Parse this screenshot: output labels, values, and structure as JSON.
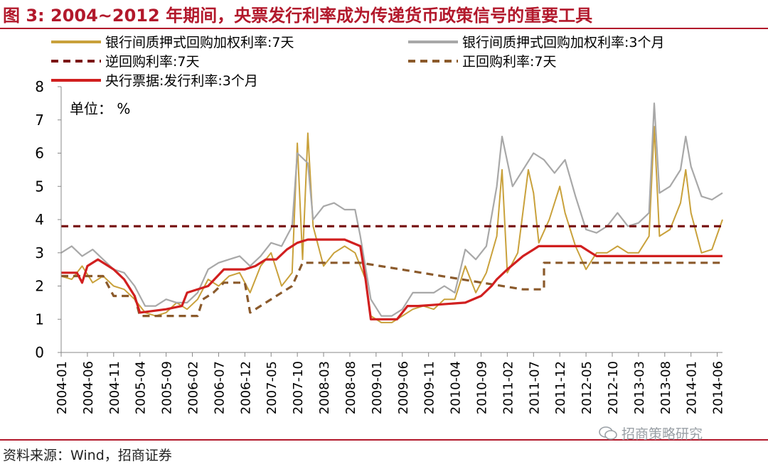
{
  "figure": {
    "title": "图 3:  2004~2012 年期间，央票发行利率成为传递货币政策信号的重要工具",
    "source": "资料来源：Wind，招商证券",
    "watermark": "招商策略研究",
    "watermark_icon": "wechat-icon"
  },
  "colors": {
    "title": "#b2182b",
    "repo7d": "#c9a13b",
    "repo3m": "#a8a8a8",
    "reverse_repo": "#7b1414",
    "forward_repo": "#8b5a2b",
    "cb_bill": "#d11f1f"
  },
  "chart_data": {
    "type": "line",
    "unit_label": "单位： %",
    "ylim": [
      0,
      8
    ],
    "y_ticks": [
      "0",
      "1",
      "2",
      "3",
      "4",
      "5",
      "6",
      "7",
      "8"
    ],
    "x_ticks": [
      "2004-01",
      "2004-06",
      "2004-11",
      "2005-04",
      "2005-09",
      "2006-02",
      "2006-07",
      "2006-12",
      "2007-05",
      "2007-10",
      "2008-03",
      "2008-08",
      "2009-01",
      "2009-06",
      "2009-11",
      "2010-04",
      "2010-09",
      "2011-02",
      "2011-07",
      "2011-12",
      "2012-05",
      "2012-10",
      "2013-03",
      "2013-08",
      "2014-01",
      "2014-06"
    ],
    "x_range": [
      "2004-01",
      "2014-07"
    ],
    "grid": false,
    "legend_position": "top",
    "series": [
      {
        "key": "repo7d",
        "name": "银行间质押式回购加权利率:7天",
        "style": "solid",
        "points": [
          [
            "2004-01",
            2.3
          ],
          [
            "2004-03",
            2.2
          ],
          [
            "2004-05",
            2.6
          ],
          [
            "2004-07",
            2.1
          ],
          [
            "2004-09",
            2.3
          ],
          [
            "2004-11",
            2.0
          ],
          [
            "2005-01",
            1.9
          ],
          [
            "2005-03",
            1.6
          ],
          [
            "2005-05",
            1.2
          ],
          [
            "2005-07",
            1.1
          ],
          [
            "2005-09",
            1.2
          ],
          [
            "2005-11",
            1.5
          ],
          [
            "2006-01",
            1.3
          ],
          [
            "2006-03",
            1.6
          ],
          [
            "2006-05",
            2.2
          ],
          [
            "2006-07",
            2.0
          ],
          [
            "2006-09",
            2.3
          ],
          [
            "2006-11",
            2.4
          ],
          [
            "2007-01",
            1.8
          ],
          [
            "2007-03",
            2.6
          ],
          [
            "2007-05",
            3.0
          ],
          [
            "2007-07",
            2.0
          ],
          [
            "2007-09",
            2.4
          ],
          [
            "2007-10",
            6.3
          ],
          [
            "2007-11",
            2.8
          ],
          [
            "2007-12",
            6.6
          ],
          [
            "2008-01",
            3.8
          ],
          [
            "2008-03",
            2.6
          ],
          [
            "2008-05",
            3.0
          ],
          [
            "2008-07",
            3.2
          ],
          [
            "2008-09",
            3.0
          ],
          [
            "2008-11",
            2.2
          ],
          [
            "2008-12",
            1.1
          ],
          [
            "2009-02",
            0.9
          ],
          [
            "2009-04",
            0.9
          ],
          [
            "2009-06",
            1.1
          ],
          [
            "2009-08",
            1.3
          ],
          [
            "2009-10",
            1.4
          ],
          [
            "2009-12",
            1.3
          ],
          [
            "2010-02",
            1.6
          ],
          [
            "2010-04",
            1.6
          ],
          [
            "2010-06",
            2.6
          ],
          [
            "2010-08",
            1.8
          ],
          [
            "2010-10",
            2.4
          ],
          [
            "2010-12",
            3.5
          ],
          [
            "2011-01",
            5.5
          ],
          [
            "2011-02",
            2.4
          ],
          [
            "2011-04",
            3.0
          ],
          [
            "2011-06",
            5.5
          ],
          [
            "2011-07",
            4.8
          ],
          [
            "2011-08",
            3.3
          ],
          [
            "2011-10",
            4.0
          ],
          [
            "2011-12",
            5.0
          ],
          [
            "2012-01",
            4.2
          ],
          [
            "2012-03",
            3.2
          ],
          [
            "2012-05",
            2.5
          ],
          [
            "2012-07",
            3.0
          ],
          [
            "2012-09",
            3.0
          ],
          [
            "2012-11",
            3.2
          ],
          [
            "2013-01",
            3.0
          ],
          [
            "2013-03",
            3.0
          ],
          [
            "2013-05",
            3.5
          ],
          [
            "2013-06",
            6.8
          ],
          [
            "2013-07",
            3.5
          ],
          [
            "2013-09",
            3.7
          ],
          [
            "2013-11",
            4.5
          ],
          [
            "2013-12",
            5.5
          ],
          [
            "2014-01",
            4.2
          ],
          [
            "2014-03",
            3.0
          ],
          [
            "2014-05",
            3.1
          ],
          [
            "2014-07",
            4.0
          ]
        ]
      },
      {
        "key": "repo3m",
        "name": "银行间质押式回购加权利率:3个月",
        "style": "solid",
        "points": [
          [
            "2004-01",
            3.0
          ],
          [
            "2004-03",
            3.2
          ],
          [
            "2004-05",
            2.9
          ],
          [
            "2004-07",
            3.1
          ],
          [
            "2004-09",
            2.8
          ],
          [
            "2004-11",
            2.5
          ],
          [
            "2005-01",
            2.4
          ],
          [
            "2005-03",
            2.0
          ],
          [
            "2005-05",
            1.4
          ],
          [
            "2005-07",
            1.4
          ],
          [
            "2005-09",
            1.6
          ],
          [
            "2005-11",
            1.5
          ],
          [
            "2006-01",
            1.5
          ],
          [
            "2006-03",
            1.8
          ],
          [
            "2006-05",
            2.5
          ],
          [
            "2006-07",
            2.7
          ],
          [
            "2006-09",
            2.8
          ],
          [
            "2006-11",
            2.9
          ],
          [
            "2007-01",
            2.6
          ],
          [
            "2007-03",
            2.9
          ],
          [
            "2007-05",
            3.3
          ],
          [
            "2007-07",
            3.2
          ],
          [
            "2007-09",
            3.8
          ],
          [
            "2007-10",
            6.0
          ],
          [
            "2007-12",
            5.7
          ],
          [
            "2008-01",
            4.0
          ],
          [
            "2008-03",
            4.4
          ],
          [
            "2008-05",
            4.5
          ],
          [
            "2008-07",
            4.3
          ],
          [
            "2008-09",
            4.3
          ],
          [
            "2008-10",
            3.5
          ],
          [
            "2008-12",
            1.6
          ],
          [
            "2009-02",
            1.1
          ],
          [
            "2009-04",
            1.1
          ],
          [
            "2009-06",
            1.3
          ],
          [
            "2009-08",
            1.8
          ],
          [
            "2009-10",
            1.8
          ],
          [
            "2009-12",
            1.8
          ],
          [
            "2010-02",
            2.0
          ],
          [
            "2010-04",
            1.8
          ],
          [
            "2010-06",
            3.1
          ],
          [
            "2010-08",
            2.8
          ],
          [
            "2010-10",
            3.2
          ],
          [
            "2010-12",
            5.0
          ],
          [
            "2011-01",
            6.5
          ],
          [
            "2011-03",
            5.0
          ],
          [
            "2011-05",
            5.5
          ],
          [
            "2011-07",
            6.0
          ],
          [
            "2011-09",
            5.8
          ],
          [
            "2011-11",
            5.4
          ],
          [
            "2012-01",
            5.8
          ],
          [
            "2012-03",
            4.7
          ],
          [
            "2012-05",
            3.7
          ],
          [
            "2012-07",
            3.6
          ],
          [
            "2012-09",
            3.8
          ],
          [
            "2012-11",
            4.2
          ],
          [
            "2013-01",
            3.8
          ],
          [
            "2013-03",
            3.9
          ],
          [
            "2013-05",
            4.2
          ],
          [
            "2013-06",
            7.5
          ],
          [
            "2013-07",
            4.8
          ],
          [
            "2013-09",
            5.0
          ],
          [
            "2013-11",
            5.5
          ],
          [
            "2013-12",
            6.5
          ],
          [
            "2014-01",
            5.6
          ],
          [
            "2014-03",
            4.7
          ],
          [
            "2014-05",
            4.6
          ],
          [
            "2014-07",
            4.8
          ]
        ]
      },
      {
        "key": "reverse_repo",
        "name": "逆回购利率:7天",
        "style": "dashed",
        "points": [
          [
            "2004-01",
            3.8
          ],
          [
            "2014-07",
            3.8
          ]
        ]
      },
      {
        "key": "forward_repo",
        "name": "正回购利率:7天",
        "style": "dashed",
        "points": [
          [
            "2004-01",
            2.3
          ],
          [
            "2004-09",
            2.3
          ],
          [
            "2004-11",
            1.7
          ],
          [
            "2005-03",
            1.7
          ],
          [
            "2005-04",
            1.1
          ],
          [
            "2006-03",
            1.1
          ],
          [
            "2006-04",
            1.6
          ],
          [
            "2006-06",
            1.8
          ],
          [
            "2006-08",
            2.1
          ],
          [
            "2006-12",
            2.1
          ],
          [
            "2007-01",
            1.2
          ],
          [
            "2007-06",
            1.7
          ],
          [
            "2007-09",
            2.0
          ],
          [
            "2007-11",
            2.7
          ],
          [
            "2008-10",
            2.7
          ],
          [
            "2011-05",
            1.9
          ],
          [
            "2011-09",
            1.9
          ],
          [
            "2011-09",
            2.7
          ],
          [
            "2014-07",
            2.7
          ]
        ]
      },
      {
        "key": "cb_bill",
        "name": "央行票据:发行利率:3个月",
        "style": "solid",
        "points": [
          [
            "2004-01",
            2.4
          ],
          [
            "2004-04",
            2.4
          ],
          [
            "2004-05",
            2.1
          ],
          [
            "2004-06",
            2.6
          ],
          [
            "2004-08",
            2.8
          ],
          [
            "2004-10",
            2.6
          ],
          [
            "2004-11",
            2.5
          ],
          [
            "2005-01",
            2.2
          ],
          [
            "2005-03",
            1.7
          ],
          [
            "2005-04",
            1.2
          ],
          [
            "2005-09",
            1.3
          ],
          [
            "2005-12",
            1.4
          ],
          [
            "2006-01",
            1.8
          ],
          [
            "2006-05",
            2.0
          ],
          [
            "2006-08",
            2.5
          ],
          [
            "2006-12",
            2.5
          ],
          [
            "2007-02",
            2.6
          ],
          [
            "2007-04",
            2.8
          ],
          [
            "2007-06",
            2.8
          ],
          [
            "2007-08",
            3.1
          ],
          [
            "2007-10",
            3.3
          ],
          [
            "2007-12",
            3.4
          ],
          [
            "2008-07",
            3.4
          ],
          [
            "2008-10",
            3.2
          ],
          [
            "2008-11",
            2.2
          ],
          [
            "2008-12",
            1.0
          ],
          [
            "2009-05",
            1.0
          ],
          [
            "2009-07",
            1.4
          ],
          [
            "2009-09",
            1.4
          ],
          [
            "2010-06",
            1.5
          ],
          [
            "2010-09",
            1.7
          ],
          [
            "2010-11",
            2.0
          ],
          [
            "2010-12",
            2.2
          ],
          [
            "2011-02",
            2.5
          ],
          [
            "2011-05",
            2.9
          ],
          [
            "2011-07",
            3.1
          ],
          [
            "2011-08",
            3.2
          ],
          [
            "2012-04",
            3.2
          ],
          [
            "2012-06",
            3.0
          ],
          [
            "2012-07",
            2.9
          ],
          [
            "2013-04",
            2.9
          ],
          [
            "2014-07",
            2.9
          ]
        ]
      }
    ]
  }
}
